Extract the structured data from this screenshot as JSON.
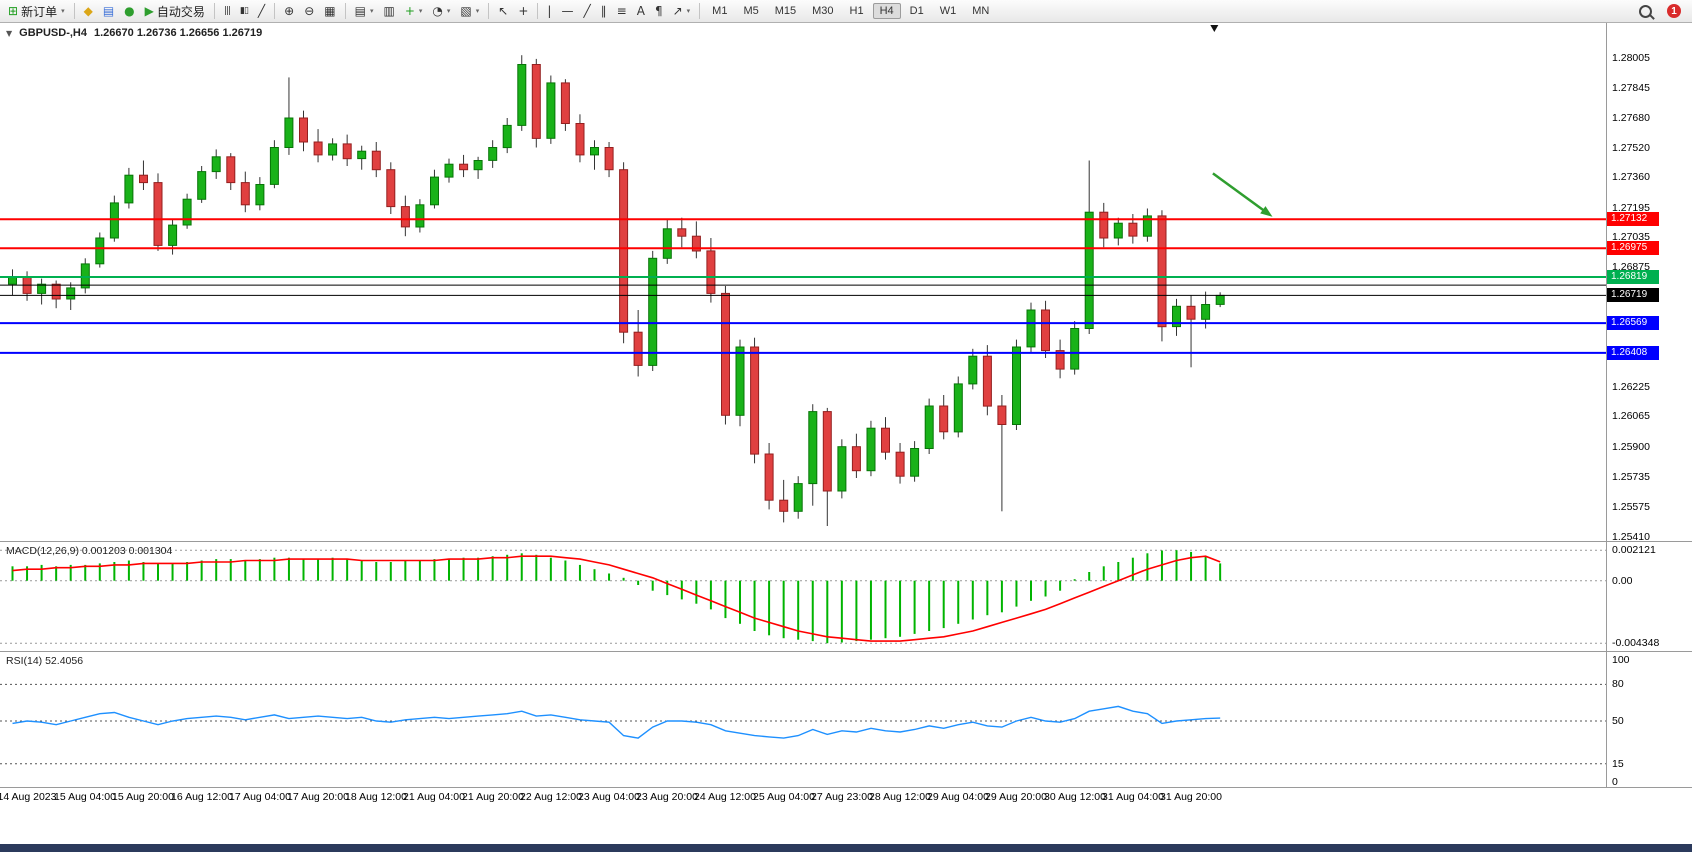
{
  "toolbar": {
    "groups": [
      {
        "name": "order",
        "items": [
          {
            "name": "new-order",
            "icon": "new-order-icon",
            "glyph": "⊞",
            "color": "#1f9e1f",
            "label": "新订单",
            "dropdown": true
          }
        ]
      },
      {
        "name": "apps",
        "items": [
          {
            "name": "metaeditor",
            "icon": "metaeditor-icon",
            "glyph": "◆",
            "color": "#dba617"
          },
          {
            "name": "market-watch",
            "icon": "market-watch-icon",
            "glyph": "▤",
            "color": "#3a6fd8"
          },
          {
            "name": "refresh",
            "icon": "refresh-icon",
            "glyph": "●",
            "color": "#2e9e2e"
          },
          {
            "name": "autotrading",
            "icon": "autotrading-icon",
            "glyph": "▶",
            "color": "#2e9e2e",
            "label": "自动交易"
          }
        ]
      },
      {
        "name": "chart-types",
        "items": [
          {
            "name": "bars-chart",
            "icon": "bars-chart-icon",
            "glyph": "|||",
            "small": true
          },
          {
            "name": "candles-chart",
            "icon": "candles-chart-icon",
            "glyph": "▮▯",
            "small": true
          },
          {
            "name": "line-chart",
            "icon": "line-chart-icon",
            "glyph": "╱"
          }
        ]
      },
      {
        "name": "zoom",
        "items": [
          {
            "name": "zoom-in",
            "icon": "zoom-in-icon",
            "glyph": "⊕"
          },
          {
            "name": "zoom-out",
            "icon": "zoom-out-icon",
            "glyph": "⊖"
          },
          {
            "name": "tile-windows",
            "icon": "tile-windows-icon",
            "glyph": "▦"
          }
        ]
      },
      {
        "name": "chart-options",
        "items": [
          {
            "name": "auto-scroll",
            "icon": "auto-scroll-icon",
            "glyph": "▤",
            "dropdown": true
          },
          {
            "name": "chart-shift",
            "icon": "chart-shift-icon",
            "glyph": "▥"
          },
          {
            "name": "indicators",
            "icon": "indicators-icon",
            "glyph": "+",
            "color": "#1f9e1f",
            "dropdown": true
          },
          {
            "name": "periods",
            "icon": "periods-icon",
            "glyph": "◔",
            "dropdown": true
          },
          {
            "name": "templates",
            "icon": "templates-icon",
            "glyph": "▧",
            "dropdown": true
          }
        ]
      },
      {
        "name": "pointer",
        "items": [
          {
            "name": "cursor",
            "icon": "cursor-icon",
            "glyph": "↖"
          },
          {
            "name": "crosshair",
            "icon": "crosshair-icon",
            "glyph": "+"
          }
        ]
      },
      {
        "name": "line-studies",
        "items": [
          {
            "name": "vertical-line",
            "icon": "vertical-line-icon",
            "glyph": "|"
          },
          {
            "name": "horizontal-line",
            "icon": "horizontal-line-icon",
            "glyph": "—"
          },
          {
            "name": "trendline",
            "icon": "trendline-icon",
            "glyph": "╱"
          },
          {
            "name": "equidistant-channel",
            "icon": "equidistant-channel-icon",
            "glyph": "∥"
          },
          {
            "name": "fibonacci",
            "icon": "fibonacci-icon",
            "glyph": "≡"
          },
          {
            "name": "text",
            "icon": "text-icon",
            "glyph": "A"
          },
          {
            "name": "text-label",
            "icon": "text-label-icon",
            "glyph": "¶"
          },
          {
            "name": "arrows",
            "icon": "arrows-icon",
            "glyph": "↗",
            "dropdown": true
          }
        ]
      }
    ],
    "timeframes": [
      "M1",
      "M5",
      "M15",
      "M30",
      "H1",
      "H4",
      "D1",
      "W1",
      "MN"
    ],
    "active_timeframe": "H4",
    "notification_count": "1"
  },
  "chart": {
    "symbol_label": "GBPUSD-,H4",
    "ohlc": "1.26670 1.26736 1.26656 1.26719"
  },
  "chart_data": [
    {
      "type": "candlestick",
      "symbol": "GBPUSD-",
      "timeframe": "H4",
      "open": "1.26670",
      "high": "1.26736",
      "low": "1.26656",
      "close": "1.26719",
      "ylim": [
        1.25389,
        1.282
      ],
      "y_axis_labels": [
        "1.28005",
        "1.27845",
        "1.27680",
        "1.27520",
        "1.27360",
        "1.27195",
        "1.27035",
        "1.26875",
        "1.26710",
        "1.26550",
        "1.26390",
        "1.26225",
        "1.26065",
        "1.25900",
        "1.25735",
        "1.25575",
        "1.25410"
      ],
      "x_labels": [
        "14 Aug 2023",
        "15 Aug 04:00",
        "15 Aug 20:00",
        "16 Aug 12:00",
        "17 Aug 04:00",
        "17 Aug 20:00",
        "18 Aug 12:00",
        "21 Aug 04:00",
        "21 Aug 20:00",
        "22 Aug 12:00",
        "23 Aug 04:00",
        "23 Aug 20:00",
        "24 Aug 12:00",
        "25 Aug 04:00",
        "27 Aug 23:00",
        "28 Aug 12:00",
        "29 Aug 04:00",
        "29 Aug 20:00",
        "30 Aug 12:00",
        "31 Aug 04:00",
        "31 Aug 20:00"
      ],
      "candles": [
        [
          1.2678,
          1.2686,
          1.2672,
          1.2682
        ],
        [
          1.2682,
          1.2685,
          1.2669,
          1.2673
        ],
        [
          1.2673,
          1.2681,
          1.2667,
          1.2678
        ],
        [
          1.2678,
          1.268,
          1.2665,
          1.267
        ],
        [
          1.267,
          1.2679,
          1.2664,
          1.2676
        ],
        [
          1.2676,
          1.2692,
          1.2673,
          1.2689
        ],
        [
          1.2689,
          1.2706,
          1.2687,
          1.2703
        ],
        [
          1.2703,
          1.2726,
          1.2701,
          1.2722
        ],
        [
          1.2722,
          1.2741,
          1.2719,
          1.2737
        ],
        [
          1.2737,
          1.2745,
          1.2729,
          1.2733
        ],
        [
          1.2733,
          1.2738,
          1.2696,
          1.2699
        ],
        [
          1.2699,
          1.2713,
          1.2694,
          1.271
        ],
        [
          1.271,
          1.2727,
          1.2708,
          1.2724
        ],
        [
          1.2724,
          1.2742,
          1.2722,
          1.2739
        ],
        [
          1.2739,
          1.2751,
          1.2735,
          1.2747
        ],
        [
          1.2747,
          1.2749,
          1.2729,
          1.2733
        ],
        [
          1.2733,
          1.2739,
          1.2717,
          1.2721
        ],
        [
          1.2721,
          1.2736,
          1.2718,
          1.2732
        ],
        [
          1.2732,
          1.2756,
          1.273,
          1.2752
        ],
        [
          1.2752,
          1.279,
          1.2748,
          1.2768
        ],
        [
          1.2768,
          1.2772,
          1.275,
          1.2755
        ],
        [
          1.2755,
          1.2762,
          1.2744,
          1.2748
        ],
        [
          1.2748,
          1.2757,
          1.2745,
          1.2754
        ],
        [
          1.2754,
          1.2759,
          1.2742,
          1.2746
        ],
        [
          1.2746,
          1.2753,
          1.274,
          1.275
        ],
        [
          1.275,
          1.2755,
          1.2736,
          1.274
        ],
        [
          1.274,
          1.2744,
          1.2716,
          1.272
        ],
        [
          1.272,
          1.2726,
          1.2704,
          1.2709
        ],
        [
          1.2709,
          1.2724,
          1.2706,
          1.2721
        ],
        [
          1.2721,
          1.274,
          1.2719,
          1.2736
        ],
        [
          1.2736,
          1.2746,
          1.2733,
          1.2743
        ],
        [
          1.2743,
          1.2748,
          1.2736,
          1.274
        ],
        [
          1.274,
          1.2747,
          1.2735,
          1.2745
        ],
        [
          1.2745,
          1.2756,
          1.2741,
          1.2752
        ],
        [
          1.2752,
          1.2768,
          1.2749,
          1.2764
        ],
        [
          1.2764,
          1.2802,
          1.2761,
          1.2797
        ],
        [
          1.2797,
          1.28,
          1.2752,
          1.2757
        ],
        [
          1.2757,
          1.2791,
          1.2754,
          1.2787
        ],
        [
          1.2787,
          1.2789,
          1.2761,
          1.2765
        ],
        [
          1.2765,
          1.277,
          1.2744,
          1.2748
        ],
        [
          1.2748,
          1.2756,
          1.274,
          1.2752
        ],
        [
          1.2752,
          1.2755,
          1.2736,
          1.274
        ],
        [
          1.274,
          1.2744,
          1.2646,
          1.2652
        ],
        [
          1.2652,
          1.2664,
          1.2628,
          1.2634
        ],
        [
          1.2634,
          1.2696,
          1.2631,
          1.2692
        ],
        [
          1.2692,
          1.2713,
          1.2689,
          1.2708
        ],
        [
          1.2708,
          1.2714,
          1.2698,
          1.2704
        ],
        [
          1.2704,
          1.2712,
          1.2692,
          1.2696
        ],
        [
          1.2696,
          1.2703,
          1.2668,
          1.2673
        ],
        [
          1.2673,
          1.2677,
          1.2602,
          1.2607
        ],
        [
          1.2607,
          1.2648,
          1.2601,
          1.2644
        ],
        [
          1.2644,
          1.2649,
          1.2581,
          1.2586
        ],
        [
          1.2586,
          1.2592,
          1.2556,
          1.2561
        ],
        [
          1.2561,
          1.2572,
          1.2549,
          1.2555
        ],
        [
          1.2555,
          1.2574,
          1.2551,
          1.257
        ],
        [
          1.257,
          1.2613,
          1.2558,
          1.2609
        ],
        [
          1.2609,
          1.2611,
          1.2547,
          1.2566
        ],
        [
          1.2566,
          1.2594,
          1.2562,
          1.259
        ],
        [
          1.259,
          1.2597,
          1.2573,
          1.2577
        ],
        [
          1.2577,
          1.2604,
          1.2574,
          1.26
        ],
        [
          1.26,
          1.2606,
          1.2583,
          1.2587
        ],
        [
          1.2587,
          1.2592,
          1.257,
          1.2574
        ],
        [
          1.2574,
          1.2593,
          1.2571,
          1.2589
        ],
        [
          1.2589,
          1.2616,
          1.2586,
          1.2612
        ],
        [
          1.2612,
          1.2618,
          1.2594,
          1.2598
        ],
        [
          1.2598,
          1.2628,
          1.2595,
          1.2624
        ],
        [
          1.2624,
          1.2643,
          1.2621,
          1.2639
        ],
        [
          1.2639,
          1.2645,
          1.2607,
          1.2612
        ],
        [
          1.2612,
          1.2618,
          1.2555,
          1.2602
        ],
        [
          1.2602,
          1.2648,
          1.2599,
          1.2644
        ],
        [
          1.2644,
          1.2668,
          1.2641,
          1.2664
        ],
        [
          1.2664,
          1.2669,
          1.2638,
          1.2642
        ],
        [
          1.2642,
          1.2648,
          1.2627,
          1.2632
        ],
        [
          1.2632,
          1.2658,
          1.2629,
          1.2654
        ],
        [
          1.2654,
          1.2745,
          1.2651,
          1.2717
        ],
        [
          1.2717,
          1.2722,
          1.2698,
          1.2703
        ],
        [
          1.2703,
          1.2714,
          1.2699,
          1.2711
        ],
        [
          1.2711,
          1.2716,
          1.27,
          1.2704
        ],
        [
          1.2704,
          1.2719,
          1.2701,
          1.2715
        ],
        [
          1.2715,
          1.2718,
          1.2647,
          1.2655
        ],
        [
          1.2655,
          1.267,
          1.265,
          1.2666
        ],
        [
          1.2666,
          1.2672,
          1.2633,
          1.2659
        ],
        [
          1.2659,
          1.2674,
          1.2654,
          1.2667
        ],
        [
          1.2667,
          1.26736,
          1.26656,
          1.26719
        ]
      ],
      "hlines": [
        {
          "price": 1.27132,
          "label": "1.27132",
          "color": "#ff0000",
          "width": 2,
          "tag": true
        },
        {
          "price": 1.26975,
          "label": "1.26975",
          "color": "#ff0000",
          "width": 2,
          "tag": true
        },
        {
          "price": 1.26819,
          "label": "1.26819",
          "color": "#00b050",
          "width": 2,
          "tag": true
        },
        {
          "price": 1.26775,
          "label": "",
          "color": "#000000",
          "width": 1,
          "tag": false
        },
        {
          "price": 1.26719,
          "label": "1.26719",
          "color": "#000000",
          "width": 1,
          "tag": true
        },
        {
          "price": 1.26569,
          "label": "1.26569",
          "color": "#0000ff",
          "width": 2,
          "tag": true
        },
        {
          "price": 1.26408,
          "label": "1.26408",
          "color": "#0000ff",
          "width": 2,
          "tag": true
        }
      ],
      "marker_x_index": 82.6,
      "annotations": [
        {
          "type": "arrow",
          "color": "#2f9e2f",
          "from": {
            "x_index": 82.5,
            "price": 1.2738
          },
          "to": {
            "x_index": 86.6,
            "price": 1.27145
          }
        }
      ],
      "colors": {
        "up": "#19b219",
        "up_border": "#077407",
        "down": "#e04040",
        "down_border": "#941f1f",
        "wick": "#333333"
      }
    },
    {
      "type": "histogram_line",
      "name": "MACD",
      "label": "MACD(12,26,9) 0.001203 0.001304",
      "params": "12,26,9",
      "value_main": "0.001203",
      "value_signal": "0.001304",
      "ylim": [
        -0.00475,
        0.00255
      ],
      "y_labels": [
        "0.002121",
        "0.00",
        "-0.004348"
      ],
      "y_label_values": [
        0.002121,
        0,
        -0.004348
      ],
      "histogram_color": "#00b400",
      "signal_color": "#ff0000",
      "values": [
        0.001,
        0.001,
        0.0011,
        0.001,
        0.0011,
        0.0011,
        0.0012,
        0.0013,
        0.0014,
        0.0013,
        0.0012,
        0.0012,
        0.0013,
        0.0014,
        0.0015,
        0.0015,
        0.0014,
        0.0015,
        0.0016,
        0.0016,
        0.0015,
        0.0015,
        0.0016,
        0.0015,
        0.0014,
        0.0013,
        0.0013,
        0.0014,
        0.0014,
        0.0015,
        0.0015,
        0.0016,
        0.0016,
        0.0017,
        0.0018,
        0.0019,
        0.0018,
        0.0016,
        0.0014,
        0.0011,
        0.0008,
        0.0005,
        0.0002,
        -0.0003,
        -0.0007,
        -0.001,
        -0.0013,
        -0.0016,
        -0.002,
        -0.0026,
        -0.003,
        -0.0035,
        -0.0038,
        -0.004,
        -0.0041,
        -0.0042,
        -0.004348,
        -0.0043,
        -0.0042,
        -0.0041,
        -0.004,
        -0.0039,
        -0.0037,
        -0.0035,
        -0.0033,
        -0.003,
        -0.0027,
        -0.0024,
        -0.0022,
        -0.0018,
        -0.0014,
        -0.0011,
        -0.0007,
        0.0001,
        0.0006,
        0.001,
        0.0013,
        0.0016,
        0.0019,
        0.0021,
        0.002121,
        0.002,
        0.0017,
        0.001203
      ],
      "signal": [
        0.0007,
        0.0008,
        0.0008,
        0.0009,
        0.0009,
        0.001,
        0.001,
        0.0011,
        0.0011,
        0.0012,
        0.0012,
        0.0012,
        0.0012,
        0.0013,
        0.0013,
        0.0013,
        0.0014,
        0.0014,
        0.0014,
        0.0015,
        0.0015,
        0.0015,
        0.0015,
        0.0015,
        0.0014,
        0.0014,
        0.0014,
        0.0014,
        0.0014,
        0.0014,
        0.0015,
        0.0015,
        0.0015,
        0.0016,
        0.0016,
        0.0017,
        0.0017,
        0.0017,
        0.0016,
        0.0015,
        0.0013,
        0.0011,
        0.0008,
        0.0005,
        0.0002,
        -0.0002,
        -0.0006,
        -0.001,
        -0.0014,
        -0.0018,
        -0.0022,
        -0.0026,
        -0.0029,
        -0.0032,
        -0.0035,
        -0.0037,
        -0.0039,
        -0.004,
        -0.0041,
        -0.0042,
        -0.0042,
        -0.0042,
        -0.0041,
        -0.004,
        -0.0039,
        -0.0037,
        -0.0035,
        -0.0032,
        -0.0029,
        -0.0026,
        -0.0023,
        -0.002,
        -0.0016,
        -0.0012,
        -0.0008,
        -0.0004,
        0.0,
        0.0004,
        0.0008,
        0.0011,
        0.0014,
        0.0016,
        0.0017,
        0.001304
      ]
    },
    {
      "type": "line",
      "name": "RSI",
      "label": "RSI(14) 52.4056",
      "value": "52.4056",
      "ylim": [
        0,
        100
      ],
      "levels": [
        80,
        50,
        15
      ],
      "y_labels": [
        "100",
        "80",
        "50",
        "15",
        "0"
      ],
      "y_label_values": [
        100,
        80,
        50,
        15,
        0
      ],
      "line_color": "#1e90ff",
      "values": [
        48,
        50,
        49,
        47,
        50,
        53,
        56,
        57,
        53,
        50,
        47,
        50,
        52,
        53,
        54,
        53,
        51,
        53,
        55,
        52,
        53,
        54,
        53,
        52,
        53,
        50,
        49,
        51,
        52,
        53,
        52,
        53,
        54,
        55,
        56,
        58,
        54,
        55,
        53,
        51,
        50,
        49,
        38,
        36,
        45,
        50,
        50,
        49,
        47,
        42,
        40,
        38,
        37,
        36,
        38,
        43,
        39,
        42,
        41,
        44,
        42,
        41,
        43,
        46,
        44,
        47,
        49,
        46,
        45,
        50,
        53,
        50,
        49,
        52,
        58,
        60,
        62,
        58,
        56,
        48,
        50,
        51,
        52,
        52.4
      ]
    }
  ]
}
